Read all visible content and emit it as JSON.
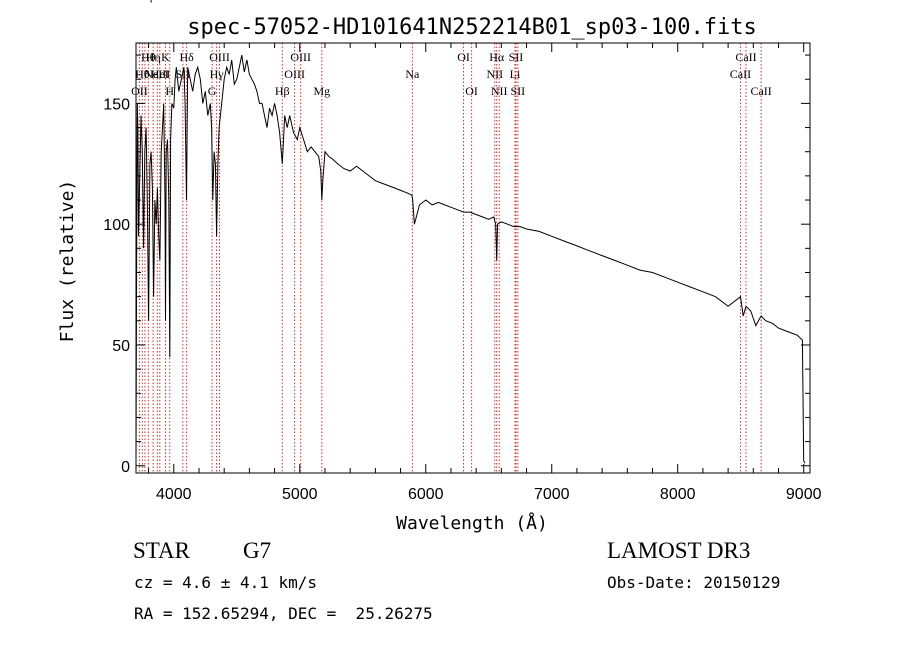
{
  "chart_data": {
    "type": "line",
    "title": "spec-57052-HD101641N252214B01_sp03-100.fits",
    "xlabel": "Wavelength (Å)",
    "ylabel": "Flux (relative)",
    "xlim": [
      3700,
      9050
    ],
    "ylim": [
      -3,
      175
    ],
    "xticks": [
      4000,
      5000,
      6000,
      7000,
      8000,
      9000
    ],
    "yticks": [
      0,
      50,
      100,
      150
    ],
    "grid": false,
    "series": [
      {
        "x": [
          3700,
          3705,
          3710,
          3715,
          3720,
          3730,
          3740,
          3750,
          3760,
          3770,
          3780,
          3790,
          3800,
          3810,
          3820,
          3830,
          3840,
          3850,
          3860,
          3870,
          3880,
          3890,
          3900,
          3910,
          3920,
          3930,
          3934,
          3940,
          3950,
          3960,
          3968,
          3975,
          3985,
          4000,
          4010,
          4020,
          4040,
          4060,
          4080,
          4090,
          4101,
          4110,
          4130,
          4150,
          4170,
          4190,
          4210,
          4230,
          4250,
          4270,
          4290,
          4300,
          4310,
          4320,
          4330,
          4340,
          4350,
          4360,
          4380,
          4400,
          4420,
          4440,
          4460,
          4480,
          4500,
          4520,
          4540,
          4560,
          4580,
          4600,
          4620,
          4640,
          4660,
          4680,
          4700,
          4720,
          4740,
          4760,
          4780,
          4800,
          4820,
          4840,
          4861,
          4880,
          4900,
          4920,
          4950,
          4980,
          5000,
          5030,
          5060,
          5090,
          5120,
          5150,
          5167,
          5175,
          5183,
          5200,
          5230,
          5260,
          5300,
          5350,
          5400,
          5450,
          5500,
          5550,
          5600,
          5650,
          5700,
          5750,
          5800,
          5850,
          5890,
          5896,
          5910,
          5950,
          6000,
          6050,
          6100,
          6150,
          6200,
          6250,
          6300,
          6350,
          6400,
          6450,
          6500,
          6540,
          6555,
          6563,
          6570,
          6600,
          6650,
          6700,
          6750,
          6800,
          6900,
          7000,
          7100,
          7200,
          7300,
          7400,
          7500,
          7600,
          7700,
          7800,
          7900,
          8000,
          8100,
          8200,
          8300,
          8400,
          8498,
          8520,
          8542,
          8580,
          8620,
          8662,
          8700,
          8750,
          8800,
          8850,
          8900,
          8950,
          8990,
          9000,
          9010
        ],
        "y": [
          3,
          80,
          150,
          140,
          95,
          120,
          145,
          130,
          90,
          130,
          140,
          110,
          60,
          125,
          130,
          115,
          70,
          110,
          100,
          115,
          95,
          85,
          130,
          140,
          150,
          110,
          60,
          130,
          135,
          110,
          45,
          135,
          150,
          148,
          160,
          165,
          155,
          160,
          165,
          150,
          110,
          165,
          160,
          155,
          162,
          165,
          160,
          150,
          155,
          145,
          150,
          140,
          110,
          130,
          125,
          95,
          125,
          140,
          150,
          160,
          165,
          162,
          168,
          158,
          160,
          165,
          170,
          163,
          168,
          162,
          160,
          158,
          155,
          150,
          150,
          145,
          140,
          148,
          145,
          150,
          145,
          138,
          125,
          145,
          140,
          145,
          138,
          135,
          140,
          135,
          130,
          132,
          130,
          128,
          122,
          110,
          118,
          130,
          128,
          127,
          125,
          123,
          122,
          124,
          122,
          120,
          118,
          117,
          116,
          115,
          114,
          113,
          112,
          110,
          100,
          108,
          110,
          108,
          109,
          108,
          107,
          106,
          105,
          105,
          104,
          103,
          102,
          103,
          100,
          85,
          100,
          101,
          100,
          99,
          99,
          98,
          97,
          95,
          93,
          91,
          89,
          87,
          85,
          83,
          81,
          80,
          78,
          76,
          74,
          72,
          70,
          66,
          70,
          62,
          66,
          64,
          58,
          62,
          60,
          59,
          57,
          56,
          55,
          54,
          52,
          2,
          1
        ]
      }
    ],
    "lines": [
      {
        "x": 3727,
        "label": "OII",
        "row": 2
      },
      {
        "x": 3750,
        "label": "Hθ",
        "row": 1
      },
      {
        "x": 3771,
        "label": "Hη",
        "row": 3
      },
      {
        "x": 3798,
        "label": "Hθ",
        "row": 0
      },
      {
        "x": 3836,
        "label": "Hη",
        "row": 0
      },
      {
        "x": 3869,
        "label": "NeIII",
        "row": 1
      },
      {
        "x": 3889,
        "label": "HeI",
        "row": 1
      },
      {
        "x": 3934,
        "label": "K",
        "row": 0
      },
      {
        "x": 3968,
        "label": "H",
        "row": 2
      },
      {
        "x": 4072,
        "label": "SII",
        "row": 1
      },
      {
        "x": 4102,
        "label": "Hδ",
        "row": 0
      },
      {
        "x": 4304,
        "label": "G",
        "row": 2
      },
      {
        "x": 4340,
        "label": "Hγ",
        "row": 1
      },
      {
        "x": 4363,
        "label": "OIII",
        "row": 0
      },
      {
        "x": 4861,
        "label": "Hβ",
        "row": 2
      },
      {
        "x": 4959,
        "label": "OIII",
        "row": 1
      },
      {
        "x": 5007,
        "label": "OIII",
        "row": 0
      },
      {
        "x": 5175,
        "label": "Mg",
        "row": 2
      },
      {
        "x": 5894,
        "label": "Na",
        "row": 1
      },
      {
        "x": 6300,
        "label": "OI",
        "row": 0
      },
      {
        "x": 6364,
        "label": "OI",
        "row": 2
      },
      {
        "x": 6548,
        "label": "NII",
        "row": 1
      },
      {
        "x": 6563,
        "label": "Hα",
        "row": 0
      },
      {
        "x": 6583,
        "label": "NII",
        "row": 2
      },
      {
        "x": 6708,
        "label": "Li",
        "row": 1
      },
      {
        "x": 6716,
        "label": "SII",
        "row": 0
      },
      {
        "x": 6731,
        "label": "SII",
        "row": 2
      },
      {
        "x": 8498,
        "label": "CaII",
        "row": 1
      },
      {
        "x": 8542,
        "label": "CaII",
        "row": 0
      },
      {
        "x": 8662,
        "label": "CaII",
        "row": 2
      }
    ]
  },
  "info": {
    "object_class": "STAR",
    "subclass": "G7",
    "survey": "LAMOST DR3",
    "cz": "cz = 4.6 ± 4.1 km/s",
    "obs_date": "Obs-Date: 20150129",
    "coords": "RA = 152.65294, DEC =  25.26275"
  },
  "colors": {
    "line_marker": "#c83232",
    "spectrum": "#000000"
  }
}
